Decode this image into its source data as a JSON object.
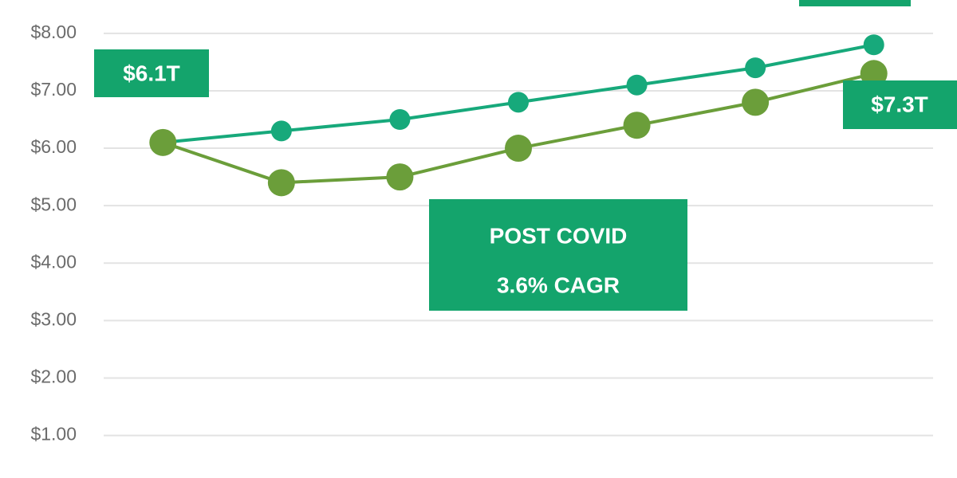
{
  "chart_data": {
    "type": "line",
    "categories": [
      null,
      null,
      null,
      null,
      null,
      null,
      null
    ],
    "series": [
      {
        "color": "#17a97b",
        "values": [
          6.1,
          6.3,
          6.5,
          6.8,
          7.1,
          7.4,
          7.8
        ]
      },
      {
        "color": "#6b9e3a",
        "values": [
          6.1,
          5.4,
          5.5,
          6.0,
          6.4,
          6.8,
          7.3
        ]
      }
    ],
    "ylim": [
      0.26,
      8.58
    ],
    "yticks": [
      {
        "value": 1,
        "label": "$1.00"
      },
      {
        "value": 2,
        "label": "$2.00"
      },
      {
        "value": 3,
        "label": "$3.00"
      },
      {
        "value": 4,
        "label": "$4.00"
      },
      {
        "value": 5,
        "label": "$5.00"
      },
      {
        "value": 6,
        "label": "$6.00"
      },
      {
        "value": 7,
        "label": "$7.00"
      },
      {
        "value": 8,
        "label": "$8.00"
      }
    ],
    "grid": true,
    "annotations": [
      "$6.1T",
      "$7.3T",
      "POST COVID",
      "3.6% CAGR"
    ],
    "annotation_color": "#14a46c"
  }
}
